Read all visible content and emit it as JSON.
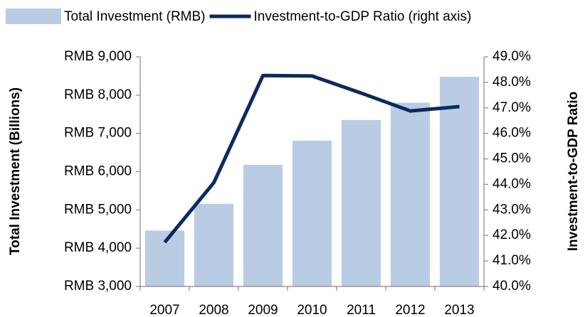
{
  "chart_data": {
    "type": "bar_line",
    "categories": [
      "2007",
      "2008",
      "2009",
      "2010",
      "2011",
      "2012",
      "2013"
    ],
    "series": [
      {
        "name": "Total Investment (RMB)",
        "type": "bar",
        "color": "#b9cce4",
        "values": [
          4460,
          5160,
          6180,
          6810,
          7350,
          7800,
          8480
        ]
      },
      {
        "name": "Investment-to-GDP Ratio (right axis)",
        "type": "line",
        "color": "#0c2a5e",
        "axis": "y2",
        "values": [
          41.73,
          44.07,
          48.27,
          48.25,
          47.58,
          46.88,
          47.05
        ]
      }
    ],
    "y_label": "Total Investment (Billions)",
    "y2_label": "Investment-to-GDP Ratio",
    "ylim": [
      3000,
      9000
    ],
    "yticks": [
      {
        "value": 3000,
        "label": "RMB 3,000"
      },
      {
        "value": 4000,
        "label": "RMB 4,000"
      },
      {
        "value": 5000,
        "label": "RMB 5,000"
      },
      {
        "value": 6000,
        "label": "RMB 6,000"
      },
      {
        "value": 7000,
        "label": "RMB 7,000"
      },
      {
        "value": 8000,
        "label": "RMB 8,000"
      },
      {
        "value": 9000,
        "label": "RMB 9,000"
      }
    ],
    "y2lim": [
      40,
      49
    ],
    "y2ticks": [
      {
        "value": 40,
        "label": "40.0%"
      },
      {
        "value": 41,
        "label": "41.0%"
      },
      {
        "value": 42,
        "label": "42.0%"
      },
      {
        "value": 43,
        "label": "43.0%"
      },
      {
        "value": 44,
        "label": "44.0%"
      },
      {
        "value": 45,
        "label": "45.0%"
      },
      {
        "value": 46,
        "label": "46.0%"
      },
      {
        "value": 47,
        "label": "47.0%"
      },
      {
        "value": 48,
        "label": "48.0%"
      },
      {
        "value": 49,
        "label": "49.0%"
      }
    ],
    "legend": "top"
  }
}
